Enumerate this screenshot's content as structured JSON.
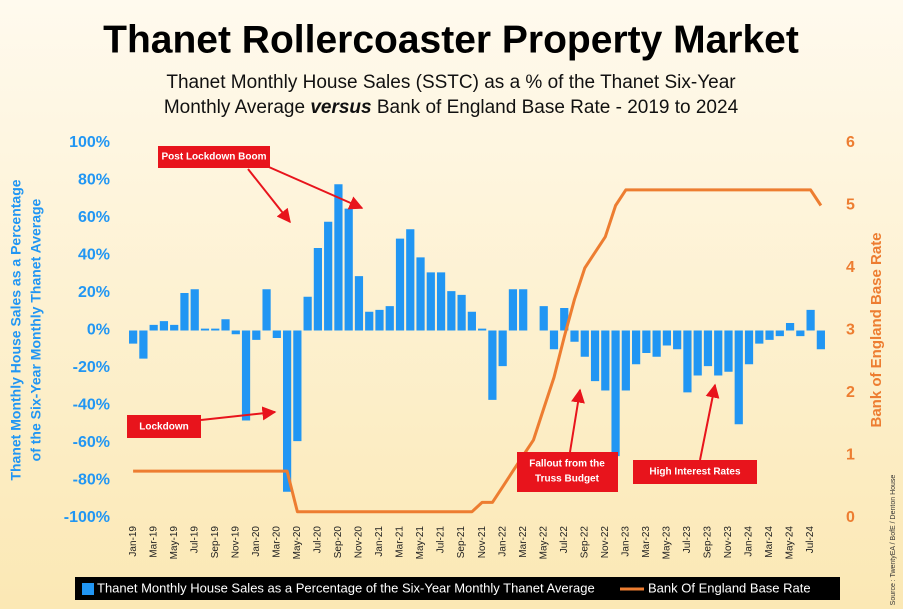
{
  "chart_data": {
    "type": "bar",
    "title": "Thanet Rollercoaster Property Market",
    "subtitle": {
      "line1": "Thanet Monthly House Sales (SSTC) as a % of the Thanet Six-Year",
      "line2_start": "Monthly Average",
      "emphasis": "versus",
      "line2_end": "Bank of England Base Rate - 2019 to 2024"
    },
    "y_label": [
      "Thanet Monthly House Sales as a Percentage",
      "of the Six-Year Monthly Thanet Average"
    ],
    "y2_label": "Bank of England Base Rate",
    "categories": [
      "Jan-19",
      null,
      "Mar-19",
      null,
      "May-19",
      null,
      "Jul-19",
      null,
      "Sep-19",
      null,
      "Nov-19",
      null,
      "Jan-20",
      null,
      "Mar-20",
      null,
      "May-20",
      null,
      "Jul-20",
      null,
      "Sep-20",
      null,
      "Nov-20",
      null,
      "Jan-21",
      null,
      "Mar-21",
      null,
      "May-21",
      null,
      "Jul-21",
      null,
      "Sep-21",
      null,
      "Nov-21",
      null,
      "Jan-22",
      null,
      "Mar-22",
      null,
      "May-22",
      null,
      "Jul-22",
      null,
      "Sep-22",
      null,
      "Nov-22",
      null,
      "Jan-23",
      null,
      "Mar-23",
      null,
      "May-23",
      null,
      "Jul-23",
      null,
      "Sep-23",
      null,
      "Nov-23",
      null,
      "Jan-24",
      null,
      "Mar-24",
      null,
      "May-24",
      null,
      "Jul-24",
      null
    ],
    "series": [
      {
        "name": "Thanet Monthly House Sales as a Percentage of the Six-Year Monthly Thanet Average",
        "type": "bar",
        "color": "#2196f3",
        "values": [
          -7,
          -15,
          3,
          5,
          3,
          20,
          22,
          1,
          1,
          6,
          -2,
          -48,
          -5,
          22,
          -4,
          -86,
          -59,
          18,
          44,
          58,
          78,
          65,
          29,
          10,
          11,
          13,
          49,
          54,
          39,
          31,
          31,
          21,
          19,
          10,
          1,
          -37,
          -19,
          22,
          22,
          0,
          13,
          -10,
          12,
          -6,
          -14,
          -27,
          -32,
          -67,
          -32,
          -18,
          -12,
          -14,
          -8,
          -10,
          -33,
          -24,
          -19,
          -24,
          -22,
          -50,
          -18,
          -7,
          -5,
          -3,
          4,
          -3,
          11,
          -10
        ]
      },
      {
        "name": "Bank Of England Base Rate",
        "type": "line",
        "axis": "y2",
        "color": "#ed7d31",
        "values": [
          0.75,
          0.75,
          0.75,
          0.75,
          0.75,
          0.75,
          0.75,
          0.75,
          0.75,
          0.75,
          0.75,
          0.75,
          0.75,
          0.75,
          0.75,
          0.75,
          0.1,
          0.1,
          0.1,
          0.1,
          0.1,
          0.1,
          0.1,
          0.1,
          0.1,
          0.1,
          0.1,
          0.1,
          0.1,
          0.1,
          0.1,
          0.1,
          0.1,
          0.1,
          0.25,
          0.25,
          0.5,
          0.75,
          1.0,
          1.25,
          1.75,
          2.25,
          2.9,
          3.5,
          4.0,
          4.25,
          4.5,
          5.0,
          5.25,
          5.25,
          5.25,
          5.25,
          5.25,
          5.25,
          5.25,
          5.25,
          5.25,
          5.25,
          5.25,
          5.25,
          5.25,
          5.25,
          5.25,
          5.25,
          5.25,
          5.25,
          5.25,
          5.0
        ]
      }
    ],
    "ylim": [
      -100,
      100
    ],
    "yticks": [
      {
        "value": -100,
        "label": "-100%"
      },
      {
        "value": -80,
        "label": "-80%"
      },
      {
        "value": -60,
        "label": "-60%"
      },
      {
        "value": -40,
        "label": "-40%"
      },
      {
        "value": -20,
        "label": "-20%"
      },
      {
        "value": 0,
        "label": "0%"
      },
      {
        "value": 20,
        "label": "20%"
      },
      {
        "value": 40,
        "label": "40%"
      },
      {
        "value": 60,
        "label": "60%"
      },
      {
        "value": 80,
        "label": "80%"
      },
      {
        "value": 100,
        "label": "100%"
      }
    ],
    "y2lim": [
      0,
      6
    ],
    "y2ticks": [
      0,
      1,
      2,
      3,
      4,
      5,
      6
    ],
    "grid": false,
    "legend": "bottom",
    "annotations": {
      "boom": "Post Lockdown Boom",
      "lockdown": "Lockdown",
      "truss": [
        "Fallout from the",
        "Truss Budget"
      ],
      "rates": "High Interest Rates"
    },
    "source": "Source : TwentyEA / BofE / Denton House"
  }
}
